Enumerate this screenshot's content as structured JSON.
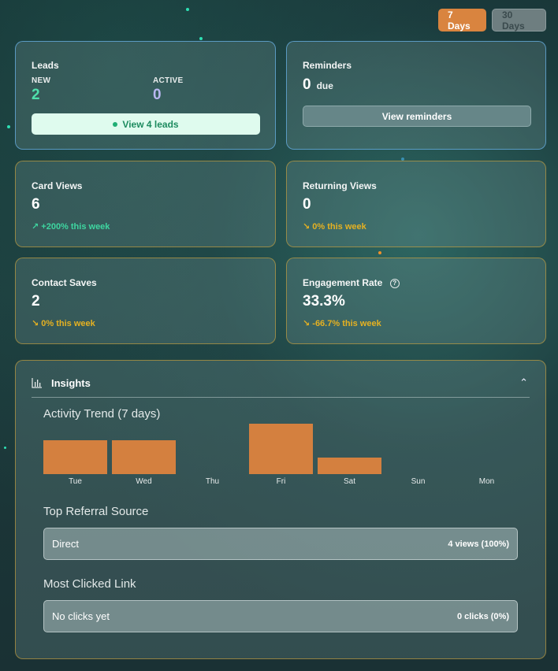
{
  "range": {
    "active_label": "7 Days",
    "inactive_label": "30 Days"
  },
  "leads": {
    "title": "Leads",
    "new_label": "NEW",
    "new_value": "2",
    "active_label": "ACTIVE",
    "active_value": "0",
    "button_label": "View 4 leads",
    "colors": {
      "new": "#4fe0ac",
      "active": "#b9b7f0"
    }
  },
  "reminders": {
    "title": "Reminders",
    "value": "0",
    "suffix": "due",
    "button_label": "View reminders"
  },
  "card_views": {
    "title": "Card Views",
    "value": "6",
    "trend_icon": "trend-up-icon",
    "trend_glyph": "↗",
    "trend_text": "+200% this week"
  },
  "returning_views": {
    "title": "Returning Views",
    "value": "0",
    "trend_icon": "trend-down-icon",
    "trend_glyph": "↘",
    "trend_text": "0% this week"
  },
  "contact_saves": {
    "title": "Contact Saves",
    "value": "2",
    "trend_icon": "trend-down-icon",
    "trend_glyph": "↘",
    "trend_text": "0% this week"
  },
  "engagement": {
    "title": "Engagement Rate",
    "help_glyph": "?",
    "value": "33.3%",
    "trend_icon": "trend-down-icon",
    "trend_glyph": "↘",
    "trend_text": "-66.7% this week"
  },
  "insights": {
    "title": "Insights",
    "collapse_glyph": "⌃",
    "activity_title": "Activity Trend (7 days)",
    "referral_title": "Top Referral Source",
    "referral_name": "Direct",
    "referral_value": "4 views (100%)",
    "clicked_title": "Most Clicked Link",
    "clicked_name": "No clicks yet",
    "clicked_value": "0 clicks (0%)"
  },
  "chart_data": {
    "type": "bar",
    "categories": [
      "Tue",
      "Wed",
      "Thu",
      "Fri",
      "Sat",
      "Sun",
      "Mon"
    ],
    "values": [
      2,
      2,
      0,
      3,
      1,
      0,
      0
    ],
    "title": "Activity Trend (7 days)",
    "xlabel": "",
    "ylabel": "",
    "ylim": [
      0,
      3
    ],
    "bar_color": "#d4803f"
  },
  "colors": {
    "accent": "#d9843f",
    "up": "#3ed6a0",
    "flat": "#e5b122"
  }
}
